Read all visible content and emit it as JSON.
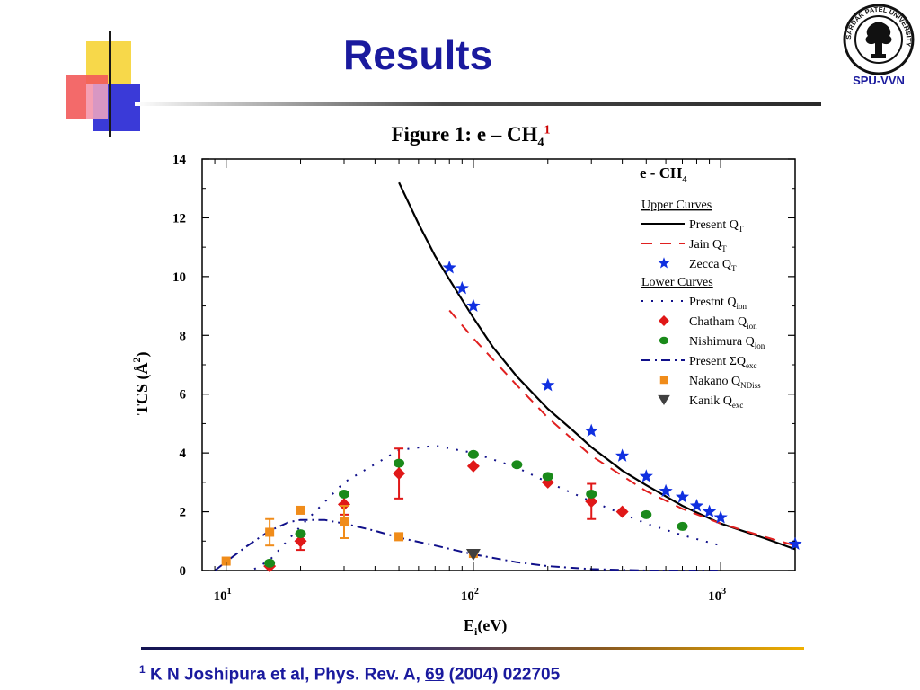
{
  "slide": {
    "title": "Results",
    "logo_caption": "SPU-VVN",
    "logo_ring_text": "SARDAR PATEL UNIVERSITY",
    "figure_caption_main": "Figure 1: e – CH",
    "figure_caption_sub": "4",
    "figure_caption_ref": "1",
    "footnote_mark": "1",
    "footnote_text": "K N Joshipura et al, Phys. Rev. A, ",
    "footnote_volume": "69",
    "footnote_rest": " (2004) 022705"
  },
  "colors": {
    "title": "#1a1a9e",
    "square_yellow": "#f7d84a",
    "square_red": "#f25a5a",
    "square_blue": "#3a3ad8",
    "present_qt": "#000000",
    "jain_qt": "#e02020",
    "zecca": "#1030e0",
    "chatham": "#e01818",
    "nishimura": "#1a8a1a",
    "excitation": "#10108a",
    "nakano": "#f08c1a",
    "kanik": "#404040"
  },
  "chart_data": {
    "type": "scatter",
    "title": "e - CH",
    "title_sub": "4",
    "xlabel": "E",
    "xlabel_sub": "i",
    "xlabel_rest": "(eV)",
    "ylabel": "TCS (Å",
    "ylabel_sup": "2",
    "ylabel_end": ")",
    "x_scale": "log",
    "xlim": [
      8,
      2000
    ],
    "ylim": [
      0,
      14
    ],
    "x_ticks": [
      {
        "value": 10,
        "base": "10",
        "exp": "1"
      },
      {
        "value": 100,
        "base": "10",
        "exp": "2"
      },
      {
        "value": 1000,
        "base": "10",
        "exp": "3"
      }
    ],
    "y_ticks": [
      0,
      2,
      4,
      6,
      8,
      10,
      12,
      14
    ],
    "legend": {
      "position": "top-right",
      "groups": [
        {
          "heading": "Upper Curves",
          "items": [
            {
              "label": "Present Q",
              "sub": "T",
              "series": "present_qt"
            },
            {
              "label": "Jain Q",
              "sub": "T",
              "series": "jain_qt"
            },
            {
              "label": "Zecca Q",
              "sub": "T",
              "series": "zecca"
            }
          ]
        },
        {
          "heading": "Lower Curves",
          "items": [
            {
              "label": "Prestnt Q",
              "sub": "ion",
              "series": "present_qion"
            },
            {
              "label": "Chatham Q",
              "sub": "ion",
              "series": "chatham"
            },
            {
              "label": "Nishimura Q",
              "sub": "ion",
              "series": "nishimura"
            },
            {
              "label": "Present ΣQ",
              "sub": "exc",
              "series": "present_qexc"
            },
            {
              "label": "Nakano Q",
              "sub": "NDiss",
              "series": "nakano"
            },
            {
              "label": "Kanik Q",
              "sub": "exc",
              "series": "kanik"
            }
          ]
        }
      ]
    },
    "series": [
      {
        "key": "present_qt",
        "style": "solid-line",
        "color": "#000000",
        "x": [
          50,
          60,
          70,
          80,
          100,
          120,
          150,
          200,
          250,
          300,
          400,
          500,
          700,
          1000,
          1500,
          2000
        ],
        "y": [
          13.2,
          11.8,
          10.7,
          9.9,
          8.6,
          7.6,
          6.6,
          5.5,
          4.8,
          4.2,
          3.4,
          2.9,
          2.2,
          1.6,
          1.1,
          0.72
        ]
      },
      {
        "key": "jain_qt",
        "style": "dashed-line",
        "color": "#e02020",
        "x": [
          80,
          100,
          150,
          200,
          300,
          500,
          700,
          1000,
          1500,
          2000
        ],
        "y": [
          8.85,
          7.9,
          6.3,
          5.2,
          3.9,
          2.7,
          2.1,
          1.6,
          1.15,
          0.85
        ]
      },
      {
        "key": "zecca",
        "style": "star",
        "color": "#1030e0",
        "x": [
          80,
          90,
          100,
          200,
          300,
          400,
          500,
          600,
          700,
          800,
          900,
          1000,
          2000
        ],
        "y": [
          10.3,
          9.6,
          9.0,
          6.3,
          4.75,
          3.9,
          3.2,
          2.7,
          2.5,
          2.2,
          2.0,
          1.8,
          0.9
        ]
      },
      {
        "key": "present_qion",
        "style": "dotted-line",
        "color": "#10108a",
        "x": [
          13,
          15,
          20,
          30,
          50,
          70,
          100,
          150,
          200,
          300,
          500,
          700,
          1000
        ],
        "y": [
          0.05,
          0.35,
          1.5,
          3.0,
          4.1,
          4.25,
          4.0,
          3.5,
          3.0,
          2.35,
          1.6,
          1.2,
          0.85
        ]
      },
      {
        "key": "chatham",
        "style": "diamond",
        "color": "#e01818",
        "x": [
          15,
          20,
          30,
          50,
          100,
          200,
          300,
          400
        ],
        "y": [
          0.15,
          1.0,
          2.25,
          3.3,
          3.55,
          3.0,
          2.35,
          2.0
        ],
        "errors": [
          null,
          0.3,
          0.35,
          0.85,
          null,
          null,
          0.6,
          null
        ]
      },
      {
        "key": "nishimura",
        "style": "circle",
        "color": "#1a8a1a",
        "x": [
          15,
          20,
          30,
          50,
          100,
          150,
          200,
          300,
          500,
          700
        ],
        "y": [
          0.25,
          1.25,
          2.6,
          3.65,
          3.95,
          3.6,
          3.2,
          2.6,
          1.9,
          1.5
        ]
      },
      {
        "key": "present_qexc",
        "style": "dash-dot-line",
        "color": "#10108a",
        "x": [
          9,
          10,
          12,
          15,
          18,
          20,
          25,
          30,
          40,
          50,
          70,
          100,
          150,
          200,
          300,
          500,
          1000
        ],
        "y": [
          0.0,
          0.3,
          0.8,
          1.35,
          1.65,
          1.72,
          1.72,
          1.6,
          1.35,
          1.12,
          0.85,
          0.55,
          0.28,
          0.15,
          0.05,
          0.0,
          0.0
        ]
      },
      {
        "key": "nakano",
        "style": "square",
        "color": "#f08c1a",
        "x": [
          10,
          15,
          20,
          30,
          50,
          100
        ],
        "y": [
          0.32,
          1.3,
          2.05,
          1.65,
          1.15,
          0.58
        ],
        "errors": [
          null,
          0.45,
          null,
          0.55,
          null,
          null
        ]
      },
      {
        "key": "kanik",
        "style": "triangle-down",
        "color": "#404040",
        "x": [
          100
        ],
        "y": [
          0.55
        ]
      }
    ]
  }
}
